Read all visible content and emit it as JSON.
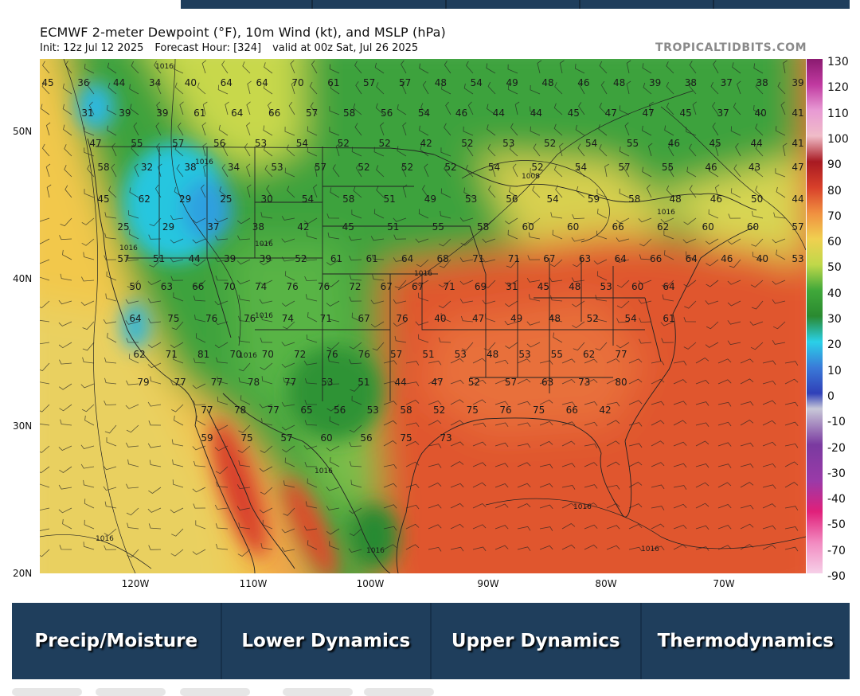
{
  "header": {
    "title": "ECMWF 2-meter Dewpoint (°F), 10m Wind (kt), and MSLP (hPa)",
    "init": "Init: 12z Jul 12 2025",
    "forecast_hour": "Forecast Hour: [324]",
    "valid": "valid at 00z Sat, Jul 26 2025",
    "watermark": "TROPICALTIDBITS.COM"
  },
  "axes": {
    "lat_labels": [
      "50N",
      "40N",
      "30N",
      "20N"
    ],
    "lon_labels": [
      "120W",
      "110W",
      "100W",
      "90W",
      "80W",
      "70W"
    ]
  },
  "colorbar": {
    "labels": [
      "130",
      "120",
      "110",
      "100",
      "90",
      "80",
      "70",
      "60",
      "50",
      "40",
      "30",
      "20",
      "10",
      "0",
      "-10",
      "-20",
      "-30",
      "-40",
      "-50",
      "-70",
      "-90"
    ]
  },
  "map": {
    "dewpoint_labels": [
      "45",
      "36",
      "44",
      "34",
      "40",
      "64",
      "64",
      "70",
      "61",
      "57",
      "57",
      "48",
      "54",
      "49",
      "48",
      "46",
      "48",
      "39",
      "38",
      "37",
      "38",
      "39",
      "31",
      "39",
      "39",
      "61",
      "64",
      "66",
      "57",
      "58",
      "56",
      "54",
      "46",
      "44",
      "44",
      "45",
      "47",
      "47",
      "45",
      "37",
      "40",
      "41",
      "47",
      "55",
      "57",
      "56",
      "53",
      "54",
      "52",
      "52",
      "42",
      "52",
      "53",
      "52",
      "54",
      "55",
      "46",
      "45",
      "44",
      "41",
      "58",
      "32",
      "38",
      "34",
      "53",
      "57",
      "52",
      "52",
      "52",
      "54",
      "52",
      "54",
      "57",
      "55",
      "46",
      "43",
      "47",
      "45",
      "62",
      "29",
      "25",
      "30",
      "54",
      "58",
      "51",
      "49",
      "53",
      "56",
      "54",
      "59",
      "58",
      "48",
      "46",
      "50",
      "44",
      "25",
      "29",
      "37",
      "38",
      "42",
      "45",
      "51",
      "55",
      "58",
      "60",
      "60",
      "66",
      "62",
      "60",
      "60",
      "57",
      "57",
      "51",
      "44",
      "39",
      "39",
      "52",
      "61",
      "61",
      "64",
      "68",
      "71",
      "71",
      "67",
      "63",
      "64",
      "66",
      "64",
      "46",
      "40",
      "53",
      "50",
      "63",
      "66",
      "70",
      "74",
      "76",
      "76",
      "72",
      "67",
      "67",
      "71",
      "69",
      "31",
      "45",
      "48",
      "53",
      "60",
      "64",
      "64",
      "75",
      "76",
      "76",
      "74",
      "71",
      "67",
      "76",
      "40",
      "47",
      "49",
      "48",
      "52",
      "54",
      "61",
      "62",
      "71",
      "81",
      "70",
      "70",
      "72",
      "76",
      "76",
      "57",
      "51",
      "53",
      "48",
      "53",
      "55",
      "62",
      "77",
      "79",
      "77",
      "77",
      "78",
      "77",
      "53",
      "51",
      "44",
      "47",
      "52",
      "57",
      "63",
      "73",
      "80",
      "77",
      "78",
      "77",
      "65",
      "56",
      "53",
      "58",
      "52",
      "75",
      "76",
      "75",
      "66",
      "42",
      "59",
      "75",
      "57",
      "60",
      "56",
      "75",
      "73"
    ],
    "isobar_labels": [
      "1016",
      "1016",
      "1016",
      "1016",
      "1016",
      "1016",
      "1016",
      "1008",
      "1016",
      "1016",
      "1016",
      "1016",
      "1016",
      "1016"
    ]
  },
  "nav": {
    "items": [
      "Precip/Moisture",
      "Lower Dynamics",
      "Upper Dynamics",
      "Thermodynamics"
    ]
  }
}
